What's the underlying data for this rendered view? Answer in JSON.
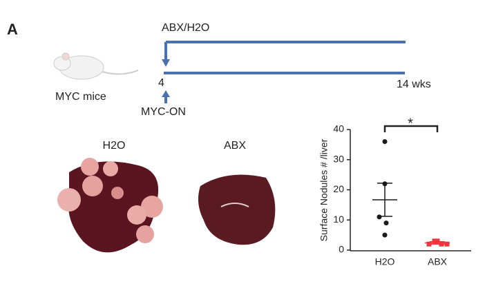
{
  "panel_label": "A",
  "timeline": {
    "treatment": "ABX/H2O",
    "start": "4",
    "end": "14 wks",
    "mouse": "MYC mice",
    "induction": "MYC-ON"
  },
  "photos": {
    "left": "H2O",
    "right": "ABX"
  },
  "chart_data": {
    "type": "dotplot",
    "y_label": "Surface Nodules # /liver",
    "categories": [
      "H2O",
      "ABX"
    ],
    "points": [
      [
        36,
        22,
        11,
        9,
        5
      ],
      [
        2,
        3,
        2,
        2,
        3
      ]
    ],
    "mean": [
      16.7,
      2.4
    ],
    "sem": [
      5.5,
      0.4
    ],
    "colors": [
      "#1a1a1a",
      "#e8383d"
    ],
    "ylim": [
      0,
      40
    ],
    "yticks": [
      0,
      10,
      20,
      30,
      40
    ],
    "annotation": "*"
  }
}
